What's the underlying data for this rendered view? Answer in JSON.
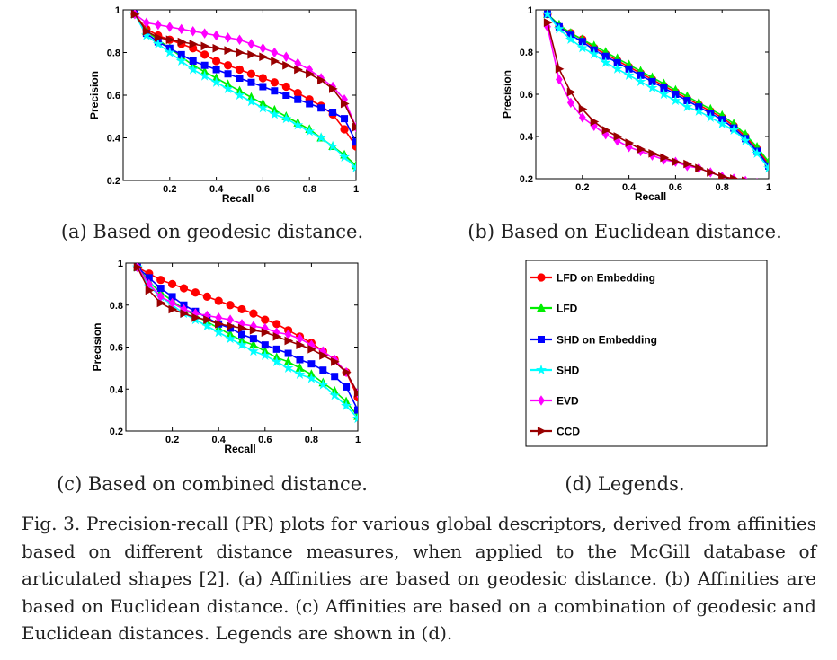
{
  "captions": {
    "a": "(a) Based on geodesic distance.",
    "b": "(b) Based on Euclidean distance.",
    "c": "(c) Based on combined distance.",
    "d": "(d) Legends."
  },
  "figure_caption": "Fig. 3. Precision-recall (PR) plots for various global descriptors, derived from affinities based on different distance measures, when applied to the McGill database of articulated shapes [2]. (a) Affinities are based on geodesic distance. (b) Affinities are based on Euclidean distance. (c) Affinities are based on a combination of geodesic and Euclidean distances. Legends are shown in (d).",
  "legend": {
    "entries": [
      {
        "name": "LFD on Embedding",
        "color": "#ff0000",
        "marker": "circle"
      },
      {
        "name": "LFD",
        "color": "#00ee00",
        "marker": "triangle"
      },
      {
        "name": "SHD on Embedding",
        "color": "#0000ff",
        "marker": "square"
      },
      {
        "name": "SHD",
        "color": "#00ffff",
        "marker": "star"
      },
      {
        "name": "EVD",
        "color": "#ff00ff",
        "marker": "diamond"
      },
      {
        "name": "CCD",
        "color": "#990000",
        "marker": "triangle-right"
      }
    ]
  },
  "chart_data": [
    {
      "id": "a",
      "type": "line",
      "xlabel": "Recall",
      "ylabel": "Precision",
      "xlim": [
        0,
        1
      ],
      "ylim": [
        0.2,
        1
      ],
      "xticks": [
        "0.2",
        "0.4",
        "0.6",
        "0.8",
        "1"
      ],
      "yticks": [
        "0.2",
        "0.4",
        "0.6",
        "0.8",
        "1"
      ],
      "x": [
        0.05,
        0.1,
        0.15,
        0.2,
        0.25,
        0.3,
        0.35,
        0.4,
        0.45,
        0.5,
        0.55,
        0.6,
        0.65,
        0.7,
        0.75,
        0.8,
        0.85,
        0.9,
        0.95,
        1.0
      ],
      "series": [
        {
          "name": "LFD on Embedding",
          "values": [
            0.98,
            0.91,
            0.88,
            0.86,
            0.84,
            0.82,
            0.79,
            0.76,
            0.74,
            0.72,
            0.7,
            0.68,
            0.66,
            0.64,
            0.61,
            0.58,
            0.55,
            0.51,
            0.44,
            0.36
          ]
        },
        {
          "name": "LFD",
          "values": [
            0.98,
            0.9,
            0.86,
            0.82,
            0.78,
            0.74,
            0.71,
            0.68,
            0.65,
            0.62,
            0.59,
            0.56,
            0.53,
            0.5,
            0.47,
            0.44,
            0.4,
            0.36,
            0.32,
            0.27
          ]
        },
        {
          "name": "SHD on Embedding",
          "values": [
            0.98,
            0.89,
            0.85,
            0.82,
            0.79,
            0.76,
            0.74,
            0.72,
            0.7,
            0.68,
            0.66,
            0.64,
            0.62,
            0.6,
            0.58,
            0.56,
            0.54,
            0.52,
            0.49,
            0.38
          ]
        },
        {
          "name": "SHD",
          "values": [
            0.98,
            0.88,
            0.84,
            0.8,
            0.76,
            0.72,
            0.69,
            0.66,
            0.63,
            0.6,
            0.57,
            0.54,
            0.51,
            0.49,
            0.46,
            0.43,
            0.4,
            0.36,
            0.31,
            0.26
          ]
        },
        {
          "name": "EVD",
          "values": [
            0.98,
            0.94,
            0.93,
            0.92,
            0.91,
            0.9,
            0.89,
            0.88,
            0.87,
            0.86,
            0.84,
            0.82,
            0.8,
            0.78,
            0.75,
            0.72,
            0.68,
            0.64,
            0.58,
            0.45
          ]
        },
        {
          "name": "CCD",
          "values": [
            0.98,
            0.9,
            0.87,
            0.86,
            0.85,
            0.84,
            0.83,
            0.82,
            0.81,
            0.8,
            0.79,
            0.78,
            0.76,
            0.74,
            0.72,
            0.7,
            0.67,
            0.63,
            0.56,
            0.45
          ]
        }
      ]
    },
    {
      "id": "b",
      "type": "line",
      "xlabel": "Recall",
      "ylabel": "Precision",
      "xlim": [
        0,
        1
      ],
      "ylim": [
        0.2,
        1
      ],
      "xticks": [
        "0.2",
        "0.4",
        "0.6",
        "0.8",
        "1"
      ],
      "yticks": [
        "0.2",
        "0.4",
        "0.6",
        "0.8",
        "1"
      ],
      "x": [
        0.05,
        0.1,
        0.15,
        0.2,
        0.25,
        0.3,
        0.35,
        0.4,
        0.45,
        0.5,
        0.55,
        0.6,
        0.65,
        0.7,
        0.75,
        0.8,
        0.85,
        0.9,
        0.95,
        1.0
      ],
      "series": [
        {
          "name": "LFD on Embedding",
          "values": [
            0.98,
            0.92,
            0.89,
            0.86,
            0.82,
            0.79,
            0.76,
            0.73,
            0.7,
            0.67,
            0.64,
            0.61,
            0.58,
            0.55,
            0.52,
            0.49,
            0.45,
            0.4,
            0.34,
            0.27
          ]
        },
        {
          "name": "LFD",
          "values": [
            0.98,
            0.93,
            0.89,
            0.86,
            0.83,
            0.8,
            0.77,
            0.74,
            0.71,
            0.68,
            0.65,
            0.62,
            0.59,
            0.56,
            0.53,
            0.5,
            0.46,
            0.41,
            0.35,
            0.28
          ]
        },
        {
          "name": "SHD on Embedding",
          "values": [
            0.98,
            0.92,
            0.88,
            0.85,
            0.81,
            0.78,
            0.75,
            0.72,
            0.69,
            0.66,
            0.63,
            0.6,
            0.57,
            0.54,
            0.51,
            0.48,
            0.44,
            0.39,
            0.33,
            0.26
          ]
        },
        {
          "name": "SHD",
          "values": [
            0.98,
            0.91,
            0.86,
            0.82,
            0.79,
            0.75,
            0.72,
            0.69,
            0.66,
            0.63,
            0.6,
            0.57,
            0.54,
            0.52,
            0.49,
            0.46,
            0.43,
            0.38,
            0.32,
            0.25
          ]
        },
        {
          "name": "EVD",
          "values": [
            0.92,
            0.67,
            0.56,
            0.49,
            0.45,
            0.41,
            0.38,
            0.35,
            0.33,
            0.31,
            0.29,
            0.28,
            0.26,
            0.25,
            0.23,
            0.21,
            0.2,
            0.19,
            0.18,
            0.17
          ]
        },
        {
          "name": "CCD",
          "values": [
            0.94,
            0.72,
            0.61,
            0.53,
            0.47,
            0.43,
            0.4,
            0.37,
            0.34,
            0.32,
            0.3,
            0.28,
            0.27,
            0.25,
            0.23,
            0.21,
            0.2,
            0.19,
            0.18,
            0.17
          ]
        }
      ]
    },
    {
      "id": "c",
      "type": "line",
      "xlabel": "Recall",
      "ylabel": "Precision",
      "xlim": [
        0,
        1
      ],
      "ylim": [
        0.2,
        1
      ],
      "xticks": [
        "0.2",
        "0.4",
        "0.6",
        "0.8",
        "1"
      ],
      "yticks": [
        "0.2",
        "0.4",
        "0.6",
        "0.8",
        "1"
      ],
      "x": [
        0.05,
        0.1,
        0.15,
        0.2,
        0.25,
        0.3,
        0.35,
        0.4,
        0.45,
        0.5,
        0.55,
        0.6,
        0.65,
        0.7,
        0.75,
        0.8,
        0.85,
        0.9,
        0.95,
        1.0
      ],
      "series": [
        {
          "name": "LFD on Embedding",
          "values": [
            0.98,
            0.95,
            0.92,
            0.9,
            0.88,
            0.86,
            0.84,
            0.82,
            0.8,
            0.78,
            0.76,
            0.73,
            0.71,
            0.68,
            0.65,
            0.62,
            0.58,
            0.54,
            0.48,
            0.36
          ]
        },
        {
          "name": "LFD",
          "values": [
            0.98,
            0.91,
            0.86,
            0.82,
            0.78,
            0.75,
            0.72,
            0.69,
            0.66,
            0.63,
            0.61,
            0.58,
            0.55,
            0.53,
            0.5,
            0.47,
            0.43,
            0.39,
            0.34,
            0.27
          ]
        },
        {
          "name": "SHD on Embedding",
          "values": [
            0.98,
            0.93,
            0.88,
            0.84,
            0.8,
            0.77,
            0.74,
            0.71,
            0.69,
            0.66,
            0.64,
            0.61,
            0.59,
            0.57,
            0.54,
            0.52,
            0.49,
            0.46,
            0.41,
            0.3
          ]
        },
        {
          "name": "SHD",
          "values": [
            0.98,
            0.89,
            0.84,
            0.8,
            0.76,
            0.73,
            0.7,
            0.67,
            0.64,
            0.61,
            0.58,
            0.56,
            0.53,
            0.5,
            0.47,
            0.45,
            0.42,
            0.37,
            0.32,
            0.26
          ]
        },
        {
          "name": "EVD",
          "values": [
            0.98,
            0.9,
            0.84,
            0.81,
            0.78,
            0.76,
            0.75,
            0.74,
            0.73,
            0.71,
            0.7,
            0.69,
            0.67,
            0.66,
            0.64,
            0.61,
            0.58,
            0.54,
            0.48,
            0.38
          ]
        },
        {
          "name": "CCD",
          "values": [
            0.98,
            0.87,
            0.81,
            0.78,
            0.76,
            0.74,
            0.73,
            0.71,
            0.7,
            0.69,
            0.68,
            0.67,
            0.65,
            0.63,
            0.61,
            0.59,
            0.56,
            0.53,
            0.48,
            0.38
          ]
        }
      ]
    }
  ]
}
